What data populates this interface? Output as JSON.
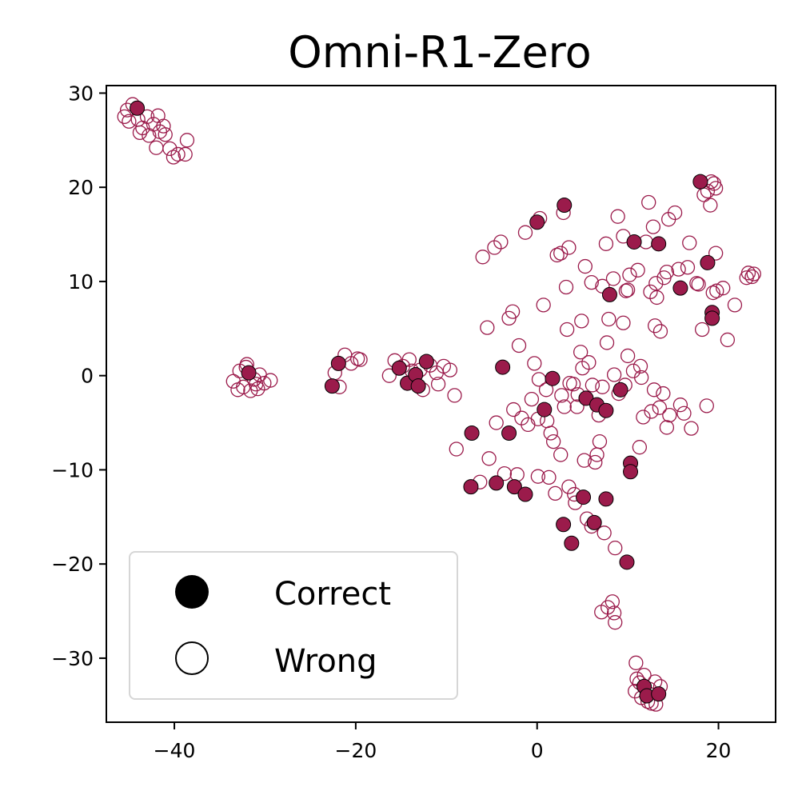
{
  "chart_data": {
    "type": "scatter",
    "title": "Omni-R1-Zero",
    "xlabel": "",
    "ylabel": "",
    "xlim": [
      -47.5,
      26.3
    ],
    "ylim": [
      -36.8,
      30.8
    ],
    "x_ticks": [
      -40,
      -20,
      0,
      20
    ],
    "y_ticks": [
      -30,
      -20,
      -10,
      0,
      10,
      20,
      30
    ],
    "x_tick_labels": [
      "−40",
      "−20",
      "0",
      "20"
    ],
    "y_tick_labels": [
      "−30",
      "−20",
      "−10",
      "0",
      "10",
      "20",
      "30"
    ],
    "grid": false,
    "legend": {
      "placement": "lower-left",
      "entries": [
        "Correct",
        "Wrong"
      ]
    },
    "colors": {
      "marker": "#9b1b4b",
      "correct_edge": "#000000"
    },
    "series": [
      {
        "name": "Correct",
        "points": [
          [
            -44.1,
            28.4
          ],
          [
            -31.8,
            0.3
          ],
          [
            -22.6,
            -1.1
          ],
          [
            -21.9,
            1.3
          ],
          [
            -15.2,
            0.8
          ],
          [
            -14.3,
            -0.8
          ],
          [
            -13.4,
            0.1
          ],
          [
            -13.1,
            -1.1
          ],
          [
            -12.2,
            1.5
          ],
          [
            -7.3,
            -11.8
          ],
          [
            -7.2,
            -6.1
          ],
          [
            -4.5,
            -11.4
          ],
          [
            -3.8,
            0.9
          ],
          [
            -3.1,
            -6.1
          ],
          [
            -2.5,
            -11.8
          ],
          [
            -1.3,
            -12.6
          ],
          [
            0.0,
            16.3
          ],
          [
            3.0,
            18.1
          ],
          [
            0.8,
            -3.6
          ],
          [
            1.7,
            -0.3
          ],
          [
            2.9,
            -15.8
          ],
          [
            3.8,
            -17.8
          ],
          [
            5.1,
            -12.9
          ],
          [
            5.4,
            -2.4
          ],
          [
            6.3,
            -15.6
          ],
          [
            6.6,
            -3.1
          ],
          [
            7.6,
            -3.7
          ],
          [
            7.6,
            -13.1
          ],
          [
            8.0,
            8.6
          ],
          [
            9.2,
            -1.5
          ],
          [
            9.9,
            -19.8
          ],
          [
            10.3,
            -9.3
          ],
          [
            10.3,
            -10.2
          ],
          [
            10.7,
            14.2
          ],
          [
            11.8,
            -33.0
          ],
          [
            12.1,
            -34.0
          ],
          [
            13.4,
            14.0
          ],
          [
            13.4,
            -33.8
          ],
          [
            15.8,
            9.3
          ],
          [
            18.0,
            20.6
          ],
          [
            18.8,
            12.0
          ],
          [
            19.3,
            6.7
          ],
          [
            19.3,
            6.1
          ]
        ]
      },
      {
        "name": "Wrong",
        "points": [
          [
            -45.5,
            27.5
          ],
          [
            -45.2,
            28.2
          ],
          [
            -44.6,
            28.8
          ],
          [
            -44.0,
            27.2
          ],
          [
            -43.5,
            26.3
          ],
          [
            -43.0,
            27.5
          ],
          [
            -42.8,
            25.5
          ],
          [
            -42.3,
            26.7
          ],
          [
            -42.0,
            24.2
          ],
          [
            -41.8,
            27.6
          ],
          [
            -41.2,
            26.5
          ],
          [
            -41.0,
            25.6
          ],
          [
            -40.5,
            24.1
          ],
          [
            -40.1,
            23.2
          ],
          [
            -39.6,
            23.5
          ],
          [
            -38.8,
            23.5
          ],
          [
            -38.6,
            25.0
          ],
          [
            -45.0,
            27.0
          ],
          [
            -43.8,
            25.8
          ],
          [
            -41.6,
            25.9
          ],
          [
            -33.5,
            -0.6
          ],
          [
            -33.0,
            -1.5
          ],
          [
            -32.8,
            0.5
          ],
          [
            -32.4,
            -1.2
          ],
          [
            -32.1,
            0.9
          ],
          [
            -31.6,
            -1.6
          ],
          [
            -31.2,
            -0.4
          ],
          [
            -30.8,
            -1.4
          ],
          [
            -30.6,
            0.1
          ],
          [
            -30.1,
            -0.8
          ],
          [
            -29.4,
            -0.5
          ],
          [
            -32.0,
            1.2
          ],
          [
            -31.0,
            -0.9
          ],
          [
            -22.3,
            0.3
          ],
          [
            -21.8,
            -1.2
          ],
          [
            -21.2,
            2.2
          ],
          [
            -20.5,
            1.3
          ],
          [
            -19.8,
            1.8
          ],
          [
            -19.5,
            1.7
          ],
          [
            -16.3,
            0.0
          ],
          [
            -15.7,
            1.6
          ],
          [
            -14.8,
            1.0
          ],
          [
            -14.1,
            1.7
          ],
          [
            -13.8,
            0.5
          ],
          [
            -12.9,
            0.6
          ],
          [
            -12.6,
            -1.5
          ],
          [
            -11.8,
            1.1
          ],
          [
            -11.1,
            0.3
          ],
          [
            -10.9,
            -0.9
          ],
          [
            -10.3,
            1.0
          ],
          [
            -9.6,
            0.6
          ],
          [
            -9.1,
            -2.1
          ],
          [
            -8.9,
            -7.8
          ],
          [
            -6.3,
            -11.3
          ],
          [
            -6.0,
            12.6
          ],
          [
            -5.5,
            5.1
          ],
          [
            -5.3,
            -8.8
          ],
          [
            -4.7,
            13.6
          ],
          [
            -4.0,
            14.2
          ],
          [
            -4.5,
            -5.0
          ],
          [
            -3.6,
            -10.4
          ],
          [
            -3.1,
            6.1
          ],
          [
            -2.7,
            6.8
          ],
          [
            -2.6,
            -3.6
          ],
          [
            -2.2,
            -10.5
          ],
          [
            -2.0,
            3.2
          ],
          [
            -1.7,
            -4.5
          ],
          [
            -1.3,
            15.2
          ],
          [
            -0.6,
            -2.5
          ],
          [
            -0.3,
            1.3
          ],
          [
            0.3,
            16.7
          ],
          [
            0.7,
            7.5
          ],
          [
            0.1,
            -10.7
          ],
          [
            1.0,
            -1.5
          ],
          [
            1.3,
            -10.8
          ],
          [
            1.5,
            -6.1
          ],
          [
            1.8,
            -7.0
          ],
          [
            2.0,
            -12.5
          ],
          [
            2.2,
            12.8
          ],
          [
            2.6,
            13.0
          ],
          [
            2.9,
            17.3
          ],
          [
            3.2,
            9.4
          ],
          [
            3.3,
            4.9
          ],
          [
            3.5,
            13.6
          ],
          [
            3.0,
            -3.3
          ],
          [
            4.0,
            -0.9
          ],
          [
            4.2,
            -13.5
          ],
          [
            4.5,
            -2.0
          ],
          [
            4.8,
            2.5
          ],
          [
            4.9,
            5.8
          ],
          [
            5.3,
            11.6
          ],
          [
            5.7,
            1.4
          ],
          [
            6.0,
            9.9
          ],
          [
            6.4,
            -9.2
          ],
          [
            6.9,
            -7.0
          ],
          [
            7.2,
            9.5
          ],
          [
            7.6,
            14.0
          ],
          [
            7.7,
            3.5
          ],
          [
            7.9,
            6.0
          ],
          [
            8.4,
            10.3
          ],
          [
            8.5,
            0.1
          ],
          [
            8.6,
            -18.3
          ],
          [
            8.9,
            16.9
          ],
          [
            8.5,
            -25.2
          ],
          [
            8.3,
            -24.0
          ],
          [
            8.6,
            -26.2
          ],
          [
            7.1,
            -25.1
          ],
          [
            7.8,
            -24.6
          ],
          [
            9.0,
            -1.9
          ],
          [
            9.5,
            5.6
          ],
          [
            9.5,
            14.8
          ],
          [
            10.0,
            9.1
          ],
          [
            10.6,
            0.5
          ],
          [
            10.9,
            -30.5
          ],
          [
            11.1,
            11.2
          ],
          [
            11.3,
            -7.6
          ],
          [
            11.4,
            1.0
          ],
          [
            11.7,
            -4.4
          ],
          [
            12.3,
            18.4
          ],
          [
            12.6,
            -34.8
          ],
          [
            12.9,
            -1.5
          ],
          [
            13.0,
            5.3
          ],
          [
            13.1,
            9.8
          ],
          [
            13.6,
            4.7
          ],
          [
            13.9,
            -1.9
          ],
          [
            14.3,
            -5.5
          ],
          [
            14.5,
            16.6
          ],
          [
            15.2,
            17.3
          ],
          [
            15.8,
            -3.1
          ],
          [
            16.2,
            -4.0
          ],
          [
            16.6,
            11.5
          ],
          [
            17.0,
            -5.6
          ],
          [
            17.8,
            9.7
          ],
          [
            18.2,
            4.9
          ],
          [
            18.4,
            19.2
          ],
          [
            18.7,
            -3.2
          ],
          [
            19.1,
            18.1
          ],
          [
            19.4,
            8.8
          ],
          [
            19.5,
            20.4
          ],
          [
            19.7,
            13.0
          ],
          [
            20.5,
            9.3
          ],
          [
            21.0,
            3.8
          ],
          [
            21.8,
            7.5
          ],
          [
            23.3,
            10.9
          ],
          [
            23.7,
            10.5
          ],
          [
            23.9,
            10.8
          ],
          [
            23.1,
            10.4
          ],
          [
            5.0,
            0.8
          ],
          [
            6.1,
            -1.0
          ],
          [
            2.7,
            -2.1
          ],
          [
            3.6,
            -0.8
          ],
          [
            4.4,
            -3.3
          ],
          [
            1.1,
            -4.8
          ],
          [
            0.2,
            -0.4
          ],
          [
            6.8,
            -4.2
          ],
          [
            7.2,
            -1.2
          ],
          [
            9.7,
            -1.0
          ],
          [
            10.0,
            2.1
          ],
          [
            11.5,
            -0.2
          ],
          [
            12.6,
            -3.8
          ],
          [
            13.5,
            -3.4
          ],
          [
            14.6,
            -4.2
          ],
          [
            5.5,
            -15.2
          ],
          [
            6.0,
            -16.0
          ],
          [
            7.4,
            -16.7
          ],
          [
            5.2,
            -9.0
          ],
          [
            6.6,
            -8.4
          ],
          [
            3.5,
            -11.8
          ],
          [
            4.1,
            -12.6
          ],
          [
            2.6,
            -8.4
          ],
          [
            0.1,
            -4.6
          ],
          [
            -1.0,
            -5.2
          ],
          [
            12.0,
            14.2
          ],
          [
            12.8,
            15.8
          ],
          [
            14.3,
            11.0
          ],
          [
            15.6,
            11.3
          ],
          [
            16.8,
            14.1
          ],
          [
            9.8,
            9.0
          ],
          [
            10.2,
            10.7
          ],
          [
            12.5,
            8.9
          ],
          [
            13.2,
            8.3
          ],
          [
            14.0,
            10.4
          ],
          [
            18.8,
            19.6
          ],
          [
            19.7,
            19.9
          ],
          [
            19.2,
            20.6
          ],
          [
            17.6,
            9.8
          ],
          [
            19.8,
            9.0
          ],
          [
            11.3,
            -32.6
          ],
          [
            11.8,
            -31.8
          ],
          [
            12.4,
            -33.3
          ],
          [
            13.0,
            -32.5
          ],
          [
            12.2,
            -34.6
          ],
          [
            11.5,
            -34.2
          ],
          [
            10.8,
            -33.5
          ],
          [
            13.6,
            -33.0
          ],
          [
            13.1,
            -34.9
          ],
          [
            11.0,
            -32.2
          ]
        ]
      }
    ]
  }
}
